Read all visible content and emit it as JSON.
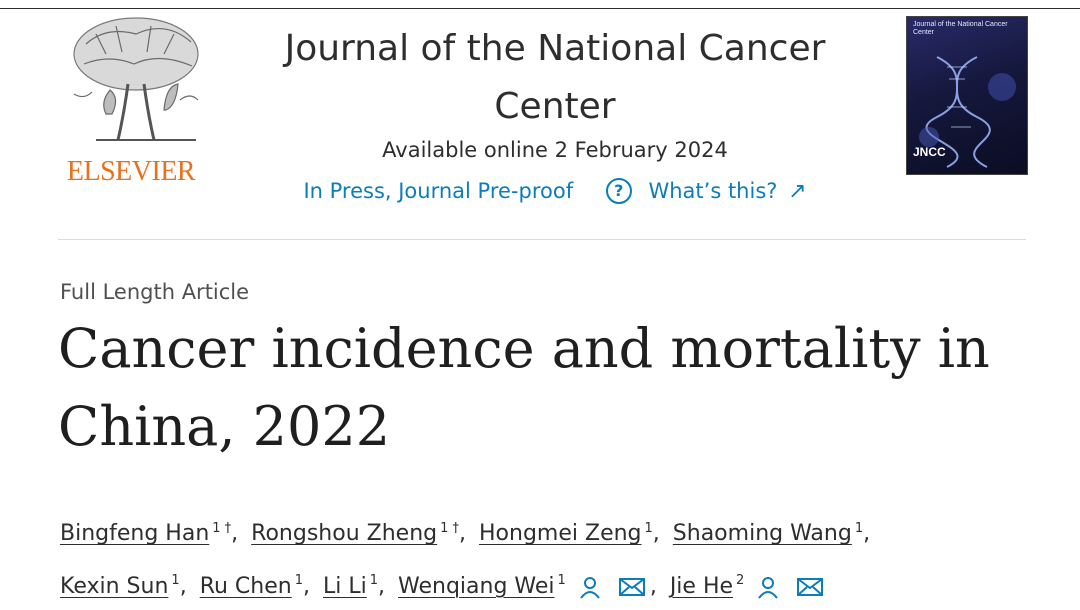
{
  "publisher": {
    "wordmark": "ELSEVIER",
    "brand_color": "#e9711c"
  },
  "journal": {
    "title": "Journal of the National Cancer Center",
    "available_online": "Available online 2 February 2024",
    "status_link": "In Press, Journal Pre-proof",
    "help_icon_glyph": "?",
    "help_link": "What’s this?",
    "external_arrow_glyph": "↗",
    "cover_title": "Journal of the National Cancer Center",
    "cover_label": "JNCC"
  },
  "article": {
    "type": "Full Length Article",
    "title": "Cancer incidence and mortality in China, 2022"
  },
  "authors": [
    {
      "name": "Bingfeng Han",
      "sup": "1 †"
    },
    {
      "name": "Rongshou Zheng",
      "sup": "1 †"
    },
    {
      "name": "Hongmei Zeng",
      "sup": "1"
    },
    {
      "name": "Shaoming Wang",
      "sup": "1"
    },
    {
      "name": "Kexin Sun",
      "sup": "1"
    },
    {
      "name": "Ru Chen",
      "sup": "1"
    },
    {
      "name": "Li Li",
      "sup": "1"
    },
    {
      "name": "Wenqiang Wei",
      "sup": "1"
    },
    {
      "name": "Jie He",
      "sup": "2"
    }
  ],
  "punctuation": {
    "comma": ","
  },
  "icons": {
    "person": "person-icon",
    "email": "envelope-icon",
    "help": "question-circle-icon",
    "external": "arrow-up-right-icon"
  },
  "colors": {
    "link": "#0c7dbb",
    "text": "#2e2e2e"
  }
}
